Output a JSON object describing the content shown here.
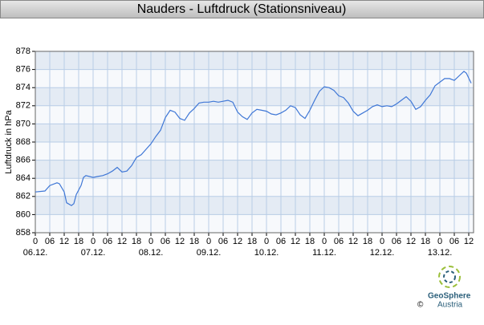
{
  "chart_data": {
    "type": "line",
    "title": "Nauders - Luftdruck (Stationsniveau)",
    "y_label": "Luftdruck in hPa",
    "x": [
      0,
      4,
      6,
      9,
      10,
      12,
      13,
      15,
      16,
      17,
      19,
      20,
      21,
      24,
      26,
      28,
      30,
      32,
      34,
      36,
      38,
      40,
      42,
      44,
      46,
      48,
      50,
      52,
      54,
      56,
      58,
      60,
      62,
      64,
      66,
      68,
      70,
      72,
      74,
      76,
      78,
      80,
      82,
      84,
      86,
      88,
      90,
      92,
      94,
      96,
      98,
      100,
      102,
      104,
      106,
      108,
      110,
      112,
      114,
      116,
      118,
      120,
      122,
      124,
      126,
      128,
      130,
      132,
      134,
      136,
      138,
      140,
      142,
      144,
      146,
      148,
      150,
      152,
      154,
      156,
      158,
      160,
      162,
      164,
      166,
      168,
      170,
      172,
      174,
      176,
      178,
      179,
      181
    ],
    "series": [
      {
        "name": "Luftdruck",
        "color": "#3f77d6",
        "values": [
          862.5,
          862.6,
          863.2,
          863.5,
          863.4,
          862.5,
          861.3,
          861.0,
          861.2,
          862.2,
          863.2,
          864.1,
          864.3,
          864.1,
          864.2,
          864.3,
          864.5,
          864.8,
          865.2,
          864.7,
          864.8,
          865.4,
          866.3,
          866.6,
          867.2,
          867.8,
          868.6,
          869.3,
          870.7,
          871.5,
          871.3,
          870.6,
          870.4,
          871.2,
          871.7,
          872.3,
          872.4,
          872.4,
          872.5,
          872.4,
          872.5,
          872.6,
          872.4,
          871.3,
          870.8,
          870.5,
          871.2,
          871.6,
          871.5,
          871.4,
          871.1,
          871.0,
          871.2,
          871.5,
          872.0,
          871.8,
          871.0,
          870.6,
          871.5,
          872.6,
          873.6,
          874.1,
          874.0,
          873.7,
          873.1,
          872.9,
          872.3,
          871.4,
          870.9,
          871.2,
          871.5,
          871.9,
          872.1,
          871.9,
          872.0,
          871.9,
          872.2,
          872.6,
          873.0,
          872.5,
          871.6,
          871.9,
          872.6,
          873.2,
          874.2,
          874.6,
          875.0,
          875.0,
          874.8,
          875.3,
          875.8,
          875.6,
          874.5
        ]
      }
    ],
    "xlim": [
      0,
      182
    ],
    "xticks": [
      0,
      {
        "value": 6,
        "label": "06"
      },
      12,
      18,
      {
        "value": 24,
        "label": "0"
      },
      {
        "value": 30,
        "label": "06"
      },
      {
        "value": 36,
        "label": "12"
      },
      {
        "value": 42,
        "label": "18"
      },
      {
        "value": 48,
        "label": "0"
      },
      {
        "value": 54,
        "label": "06"
      },
      {
        "value": 60,
        "label": "12"
      },
      {
        "value": 66,
        "label": "18"
      },
      {
        "value": 72,
        "label": "0"
      },
      {
        "value": 78,
        "label": "06"
      },
      {
        "value": 84,
        "label": "12"
      },
      {
        "value": 90,
        "label": "18"
      },
      {
        "value": 96,
        "label": "0"
      },
      {
        "value": 102,
        "label": "06"
      },
      {
        "value": 108,
        "label": "12"
      },
      {
        "value": 114,
        "label": "18"
      },
      {
        "value": 120,
        "label": "0"
      },
      {
        "value": 126,
        "label": "06"
      },
      {
        "value": 132,
        "label": "12"
      },
      {
        "value": 138,
        "label": "18"
      },
      {
        "value": 144,
        "label": "0"
      },
      {
        "value": 150,
        "label": "06"
      },
      {
        "value": 156,
        "label": "12"
      },
      {
        "value": 162,
        "label": "18"
      },
      {
        "value": 168,
        "label": "0"
      },
      {
        "value": 174,
        "label": "06"
      },
      {
        "value": 180,
        "label": "12"
      }
    ],
    "x_day_labels": [
      {
        "value": 0,
        "label": "06.12."
      },
      {
        "value": 24,
        "label": "07.12."
      },
      {
        "value": 48,
        "label": "08.12."
      },
      {
        "value": 72,
        "label": "09.12."
      },
      {
        "value": 96,
        "label": "10.12."
      },
      {
        "value": 120,
        "label": "11.12."
      },
      {
        "value": 144,
        "label": "12.12."
      },
      {
        "value": 168,
        "label": "13.12."
      }
    ],
    "ylim": [
      858,
      878
    ],
    "yticks": [
      858,
      860,
      862,
      864,
      866,
      868,
      870,
      872,
      874,
      876,
      878
    ],
    "grid": true,
    "bands": [
      "#e4ebf4",
      "#f7f9fc"
    ]
  },
  "logo": {
    "name_1": "GeoSphere",
    "name_2": "Austria",
    "copyright": "©"
  }
}
